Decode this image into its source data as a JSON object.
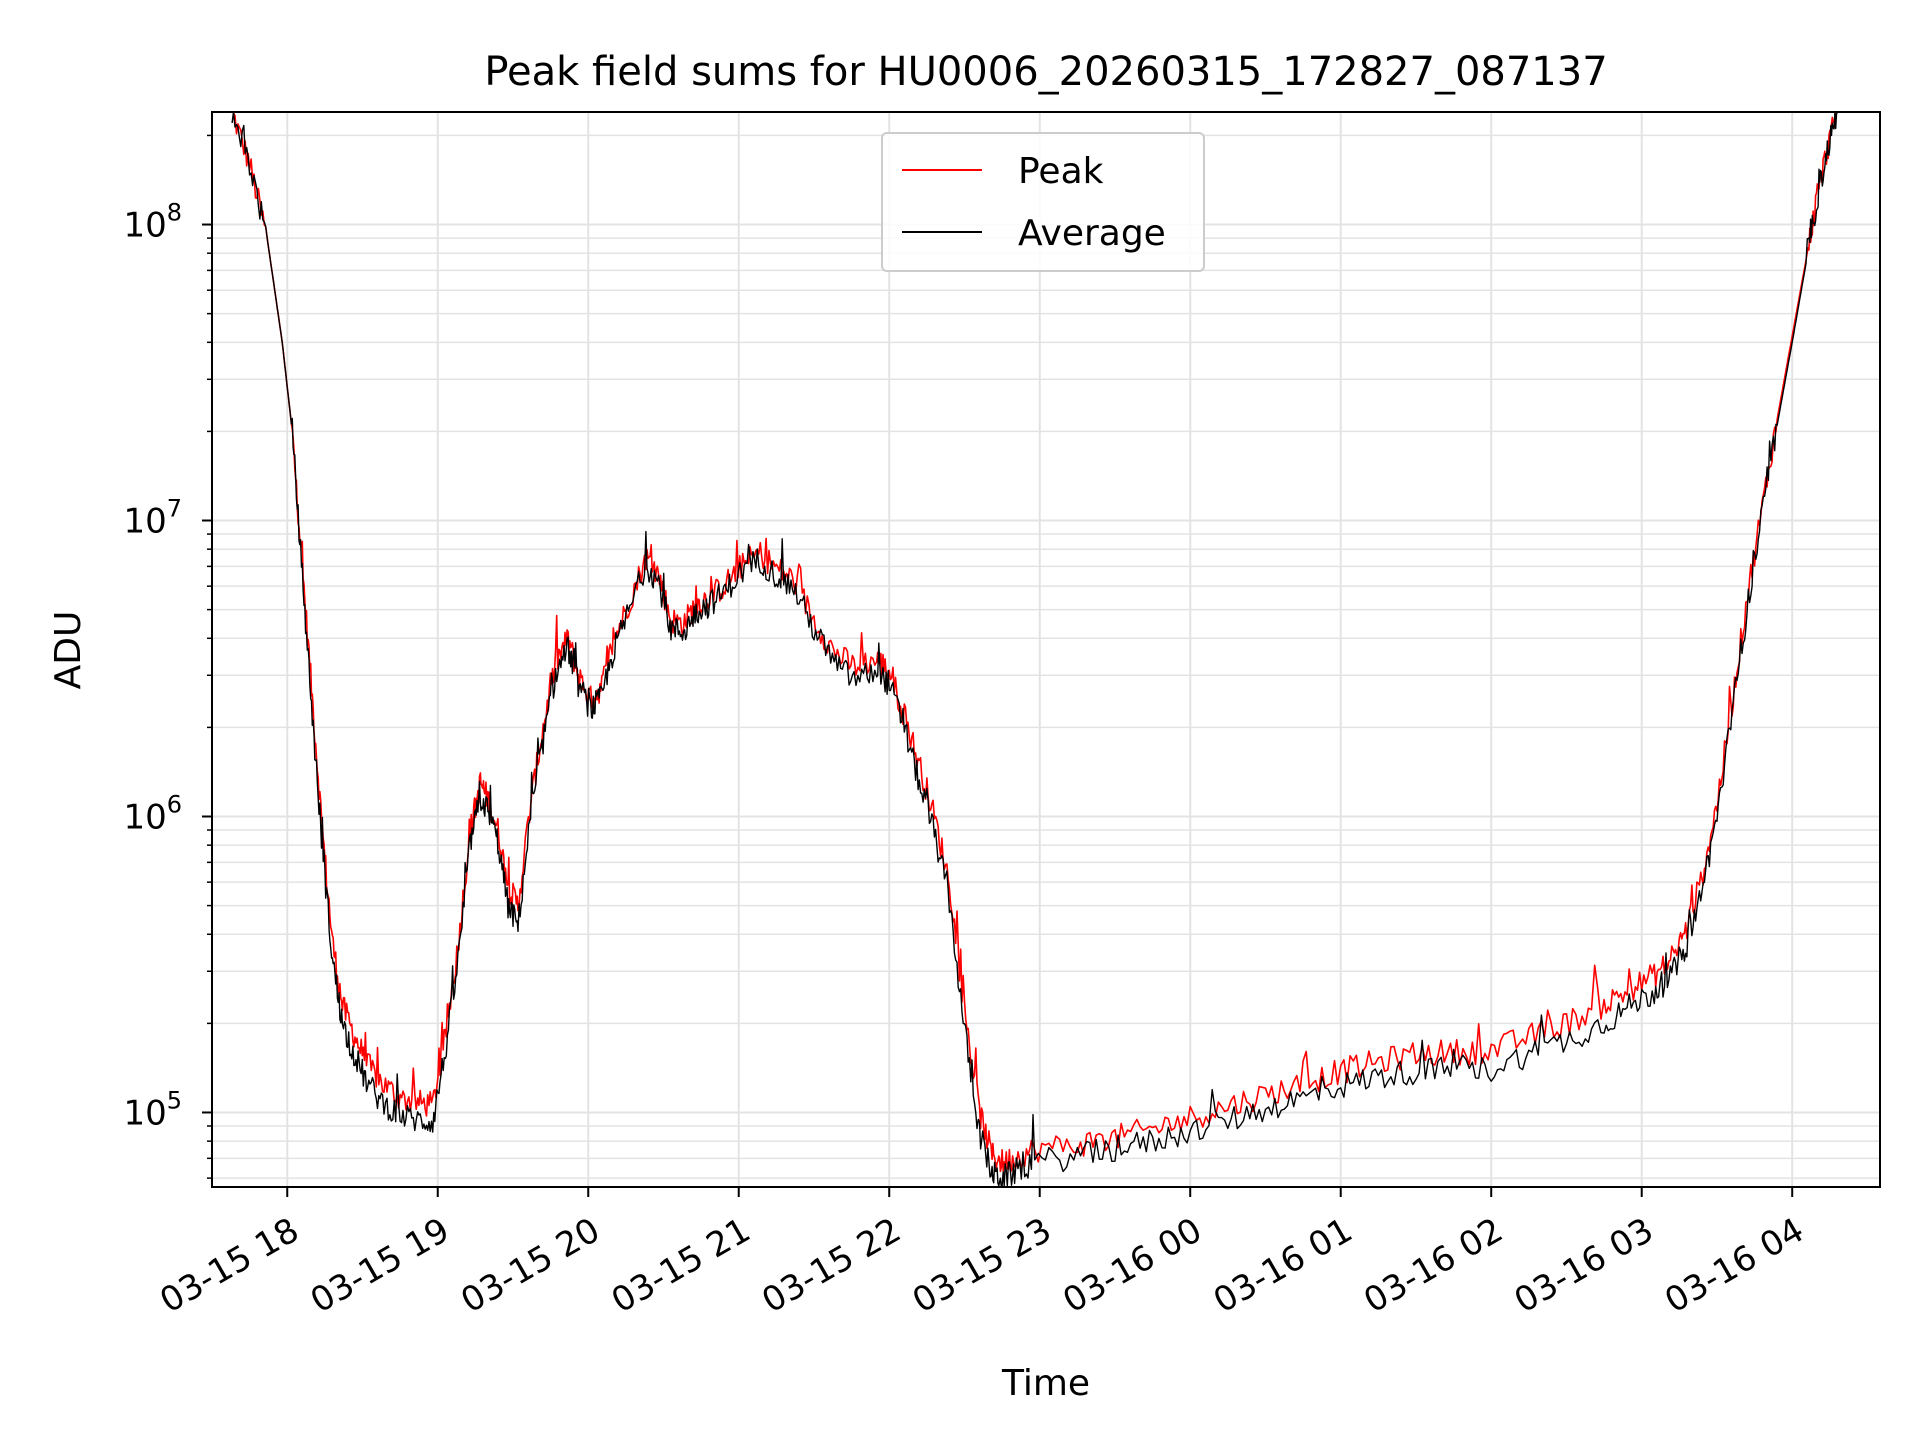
{
  "chart_data": {
    "type": "line",
    "title": "Peak field sums for HU0006_20260315_172827_087137",
    "xlabel": "Time",
    "ylabel": "ADU",
    "xscale": "time",
    "yscale": "log",
    "xlim": [
      "2026-03-15 17:30",
      "2026-03-16 04:35"
    ],
    "ylim": [
      56000,
      240000000
    ],
    "grid": true,
    "legend_position": "upper center",
    "x_ticks": [
      {
        "t": "2026-03-15 18:00",
        "label": "03-15 18"
      },
      {
        "t": "2026-03-15 19:00",
        "label": "03-15 19"
      },
      {
        "t": "2026-03-15 20:00",
        "label": "03-15 20"
      },
      {
        "t": "2026-03-15 21:00",
        "label": "03-15 21"
      },
      {
        "t": "2026-03-15 22:00",
        "label": "03-15 22"
      },
      {
        "t": "2026-03-15 23:00",
        "label": "03-15 23"
      },
      {
        "t": "2026-03-16 00:00",
        "label": "03-16 00"
      },
      {
        "t": "2026-03-16 01:00",
        "label": "03-16 01"
      },
      {
        "t": "2026-03-16 02:00",
        "label": "03-16 02"
      },
      {
        "t": "2026-03-16 03:00",
        "label": "03-16 03"
      },
      {
        "t": "2026-03-16 04:00",
        "label": "03-16 04"
      }
    ],
    "y_ticks": [
      {
        "value": 100000,
        "base": "10",
        "exp": "5"
      },
      {
        "value": 1000000,
        "base": "10",
        "exp": "6"
      },
      {
        "value": 10000000,
        "base": "10",
        "exp": "7"
      },
      {
        "value": 100000000,
        "base": "10",
        "exp": "8"
      }
    ],
    "series": [
      {
        "name": "Peak",
        "color": "#ff0000",
        "x": [
          "2026-03-15 17:38",
          "2026-03-15 17:45",
          "2026-03-15 17:52",
          "2026-03-15 17:58",
          "2026-03-15 18:02",
          "2026-03-15 18:06",
          "2026-03-15 18:10",
          "2026-03-15 18:14",
          "2026-03-15 18:18",
          "2026-03-15 18:22",
          "2026-03-15 18:27",
          "2026-03-15 18:32",
          "2026-03-15 18:38",
          "2026-03-15 18:45",
          "2026-03-15 18:52",
          "2026-03-15 18:58",
          "2026-03-15 19:03",
          "2026-03-15 19:08",
          "2026-03-15 19:13",
          "2026-03-15 19:17",
          "2026-03-15 19:20",
          "2026-03-15 19:24",
          "2026-03-15 19:28",
          "2026-03-15 19:32",
          "2026-03-15 19:37",
          "2026-03-15 19:42",
          "2026-03-15 19:47",
          "2026-03-15 19:52",
          "2026-03-15 19:56",
          "2026-03-15 20:01",
          "2026-03-15 20:05",
          "2026-03-15 20:10",
          "2026-03-15 20:16",
          "2026-03-15 20:23",
          "2026-03-15 20:28",
          "2026-03-15 20:33",
          "2026-03-15 20:38",
          "2026-03-15 20:43",
          "2026-03-15 20:48",
          "2026-03-15 20:54",
          "2026-03-15 21:01",
          "2026-03-15 21:08",
          "2026-03-15 21:15",
          "2026-03-15 21:22",
          "2026-03-15 21:30",
          "2026-03-15 21:38",
          "2026-03-15 21:46",
          "2026-03-15 21:55",
          "2026-03-15 22:00",
          "2026-03-15 22:06",
          "2026-03-15 22:12",
          "2026-03-15 22:18",
          "2026-03-15 22:24",
          "2026-03-15 22:30",
          "2026-03-15 22:36",
          "2026-03-15 22:41",
          "2026-03-15 22:45",
          "2026-03-15 22:50",
          "2026-03-15 22:58",
          "2026-03-15 23:15",
          "2026-03-15 23:30",
          "2026-03-15 23:45",
          "2026-03-16 00:00",
          "2026-03-16 00:15",
          "2026-03-16 00:30",
          "2026-03-16 00:45",
          "2026-03-16 01:00",
          "2026-03-16 01:15",
          "2026-03-16 01:30",
          "2026-03-16 01:45",
          "2026-03-16 02:00",
          "2026-03-16 02:15",
          "2026-03-16 02:30",
          "2026-03-16 02:45",
          "2026-03-16 02:55",
          "2026-03-16 03:05",
          "2026-03-16 03:12",
          "2026-03-16 03:18",
          "2026-03-16 03:24",
          "2026-03-16 03:30",
          "2026-03-16 03:36",
          "2026-03-16 03:42",
          "2026-03-16 03:48",
          "2026-03-16 03:54",
          "2026-03-16 04:00",
          "2026-03-16 04:06",
          "2026-03-16 04:10",
          "2026-03-16 04:14",
          "2026-03-16 04:18"
        ],
        "y": [
          240000000,
          160000000,
          90000000,
          40000000,
          20000000,
          7000000,
          2500000,
          900000,
          380000,
          230000,
          180000,
          145000,
          125000,
          112000,
          108000,
          106000,
          180000,
          360000,
          900000,
          1300000,
          1150000,
          900000,
          580000,
          500000,
          1100000,
          2000000,
          3300000,
          4000000,
          3000000,
          2500000,
          2700000,
          3900000,
          5200000,
          7500000,
          6600000,
          4600000,
          4500000,
          5200000,
          5500000,
          6000000,
          7000000,
          7800000,
          6900000,
          6300000,
          4600000,
          3600000,
          3200000,
          3400000,
          3100000,
          2200000,
          1500000,
          1000000,
          600000,
          220000,
          100000,
          72000,
          68000,
          70000,
          75000,
          78000,
          82000,
          88000,
          96000,
          105000,
          115000,
          125000,
          138000,
          148000,
          158000,
          160000,
          162000,
          180000,
          200000,
          230000,
          260000,
          290000,
          330000,
          420000,
          620000,
          1100000,
          2400000,
          5500000,
          11000000,
          22000000,
          42000000,
          80000000,
          125000000,
          180000000,
          240000000
        ]
      },
      {
        "name": "Average",
        "color": "#000000",
        "x": [
          "2026-03-15 17:38",
          "2026-03-15 17:45",
          "2026-03-15 17:52",
          "2026-03-15 17:58",
          "2026-03-15 18:02",
          "2026-03-15 18:06",
          "2026-03-15 18:10",
          "2026-03-15 18:14",
          "2026-03-15 18:18",
          "2026-03-15 18:22",
          "2026-03-15 18:27",
          "2026-03-15 18:32",
          "2026-03-15 18:38",
          "2026-03-15 18:45",
          "2026-03-15 18:52",
          "2026-03-15 18:58",
          "2026-03-15 19:03",
          "2026-03-15 19:08",
          "2026-03-15 19:13",
          "2026-03-15 19:17",
          "2026-03-15 19:20",
          "2026-03-15 19:24",
          "2026-03-15 19:28",
          "2026-03-15 19:32",
          "2026-03-15 19:37",
          "2026-03-15 19:42",
          "2026-03-15 19:47",
          "2026-03-15 19:52",
          "2026-03-15 19:56",
          "2026-03-15 20:01",
          "2026-03-15 20:05",
          "2026-03-15 20:10",
          "2026-03-15 20:16",
          "2026-03-15 20:23",
          "2026-03-15 20:28",
          "2026-03-15 20:33",
          "2026-03-15 20:38",
          "2026-03-15 20:43",
          "2026-03-15 20:48",
          "2026-03-15 20:54",
          "2026-03-15 21:01",
          "2026-03-15 21:08",
          "2026-03-15 21:15",
          "2026-03-15 21:22",
          "2026-03-15 21:30",
          "2026-03-15 21:38",
          "2026-03-15 21:46",
          "2026-03-15 21:55",
          "2026-03-15 22:00",
          "2026-03-15 22:06",
          "2026-03-15 22:12",
          "2026-03-15 22:18",
          "2026-03-15 22:24",
          "2026-03-15 22:30",
          "2026-03-15 22:36",
          "2026-03-15 22:41",
          "2026-03-15 22:45",
          "2026-03-15 22:50",
          "2026-03-15 22:58",
          "2026-03-15 23:15",
          "2026-03-15 23:30",
          "2026-03-15 23:45",
          "2026-03-16 00:00",
          "2026-03-16 00:15",
          "2026-03-16 00:30",
          "2026-03-16 00:45",
          "2026-03-16 01:00",
          "2026-03-16 01:15",
          "2026-03-16 01:30",
          "2026-03-16 01:45",
          "2026-03-16 02:00",
          "2026-03-16 02:15",
          "2026-03-16 02:30",
          "2026-03-16 02:45",
          "2026-03-16 02:55",
          "2026-03-16 03:05",
          "2026-03-16 03:12",
          "2026-03-16 03:18",
          "2026-03-16 03:24",
          "2026-03-16 03:30",
          "2026-03-16 03:36",
          "2026-03-16 03:42",
          "2026-03-16 03:48",
          "2026-03-16 03:54",
          "2026-03-16 04:00",
          "2026-03-16 04:06",
          "2026-03-16 04:10",
          "2026-03-16 04:14",
          "2026-03-16 04:18"
        ],
        "y": [
          240000000,
          160000000,
          90000000,
          40000000,
          20000000,
          6500000,
          2200000,
          780000,
          330000,
          200000,
          155000,
          125000,
          108000,
          98000,
          94000,
          93000,
          160000,
          320000,
          820000,
          1150000,
          1050000,
          820000,
          500000,
          430000,
          1000000,
          1800000,
          3000000,
          3700000,
          2800000,
          2300000,
          2500000,
          3600000,
          4900000,
          7100000,
          6200000,
          4300000,
          4200000,
          4900000,
          5200000,
          5700000,
          6700000,
          7400000,
          6500000,
          5900000,
          4300000,
          3300000,
          2900000,
          3100000,
          2800000,
          2000000,
          1300000,
          880000,
          520000,
          190000,
          85000,
          62000,
          60000,
          63000,
          68000,
          71000,
          75000,
          80000,
          86000,
          94000,
          103000,
          112000,
          123000,
          132000,
          138000,
          140000,
          140000,
          158000,
          175000,
          200000,
          228000,
          255000,
          290000,
          370000,
          560000,
          1000000,
          2200000,
          5000000,
          10500000,
          21000000,
          40000000,
          78000000,
          122000000,
          178000000,
          240000000
        ]
      }
    ]
  }
}
